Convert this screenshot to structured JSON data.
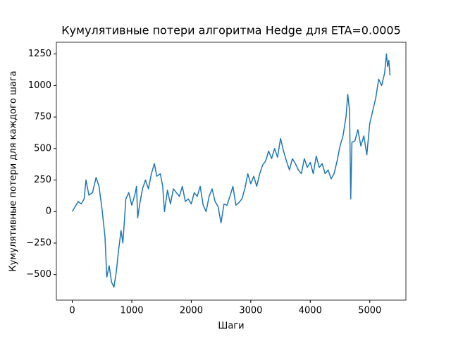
{
  "chart_data": {
    "type": "line",
    "title": "Кумулятивные потери алгоритма Hedge для ETA=0.0005",
    "x_label": "Шаги",
    "y_label": "Кумулятивные потери для каждого шага",
    "x": [
      0,
      100,
      150,
      200,
      230,
      280,
      340,
      400,
      450,
      500,
      550,
      580,
      620,
      660,
      700,
      740,
      780,
      820,
      850,
      880,
      900,
      950,
      1000,
      1050,
      1080,
      1100,
      1130,
      1180,
      1230,
      1280,
      1330,
      1380,
      1420,
      1480,
      1520,
      1550,
      1600,
      1650,
      1700,
      1750,
      1800,
      1850,
      1900,
      1950,
      2000,
      2050,
      2100,
      2150,
      2200,
      2250,
      2300,
      2350,
      2400,
      2450,
      2500,
      2550,
      2600,
      2650,
      2700,
      2750,
      2800,
      2850,
      2900,
      2950,
      3000,
      3050,
      3100,
      3150,
      3200,
      3250,
      3300,
      3350,
      3400,
      3450,
      3500,
      3550,
      3600,
      3650,
      3700,
      3750,
      3800,
      3850,
      3900,
      3950,
      4000,
      4050,
      4100,
      4150,
      4200,
      4250,
      4300,
      4350,
      4400,
      4450,
      4500,
      4550,
      4600,
      4630,
      4660,
      4680,
      4700,
      4750,
      4800,
      4850,
      4900,
      4950,
      5000,
      5050,
      5100,
      5150,
      5200,
      5250,
      5280,
      5300,
      5320,
      5340
    ],
    "series": [
      {
        "color": "#1f77b4",
        "values": [
          0,
          80,
          60,
          100,
          250,
          130,
          150,
          270,
          200,
          20,
          -200,
          -520,
          -430,
          -560,
          -600,
          -480,
          -300,
          -150,
          -250,
          -50,
          100,
          150,
          50,
          130,
          200,
          -50,
          50,
          180,
          250,
          180,
          300,
          380,
          280,
          300,
          200,
          0,
          170,
          60,
          180,
          150,
          120,
          200,
          80,
          100,
          60,
          150,
          120,
          200,
          50,
          0,
          120,
          180,
          80,
          40,
          -90,
          60,
          50,
          120,
          200,
          50,
          70,
          100,
          180,
          300,
          220,
          280,
          200,
          300,
          370,
          400,
          480,
          420,
          500,
          430,
          580,
          480,
          400,
          330,
          420,
          380,
          330,
          300,
          420,
          350,
          390,
          300,
          440,
          350,
          380,
          300,
          330,
          260,
          300,
          400,
          520,
          600,
          750,
          930,
          800,
          100,
          550,
          560,
          650,
          520,
          600,
          450,
          700,
          800,
          900,
          1050,
          1000,
          1100,
          1250,
          1150,
          1200,
          1080
        ]
      }
    ],
    "xlim": [
      -267,
      5607
    ],
    "ylim": [
      -703,
      1343
    ],
    "xticks": [
      0,
      1000,
      2000,
      3000,
      4000,
      5000
    ],
    "yticks": [
      {
        "value": -500,
        "label": "−500"
      },
      {
        "value": -250,
        "label": "−250"
      },
      0,
      250,
      500,
      750,
      1000,
      1250
    ]
  }
}
